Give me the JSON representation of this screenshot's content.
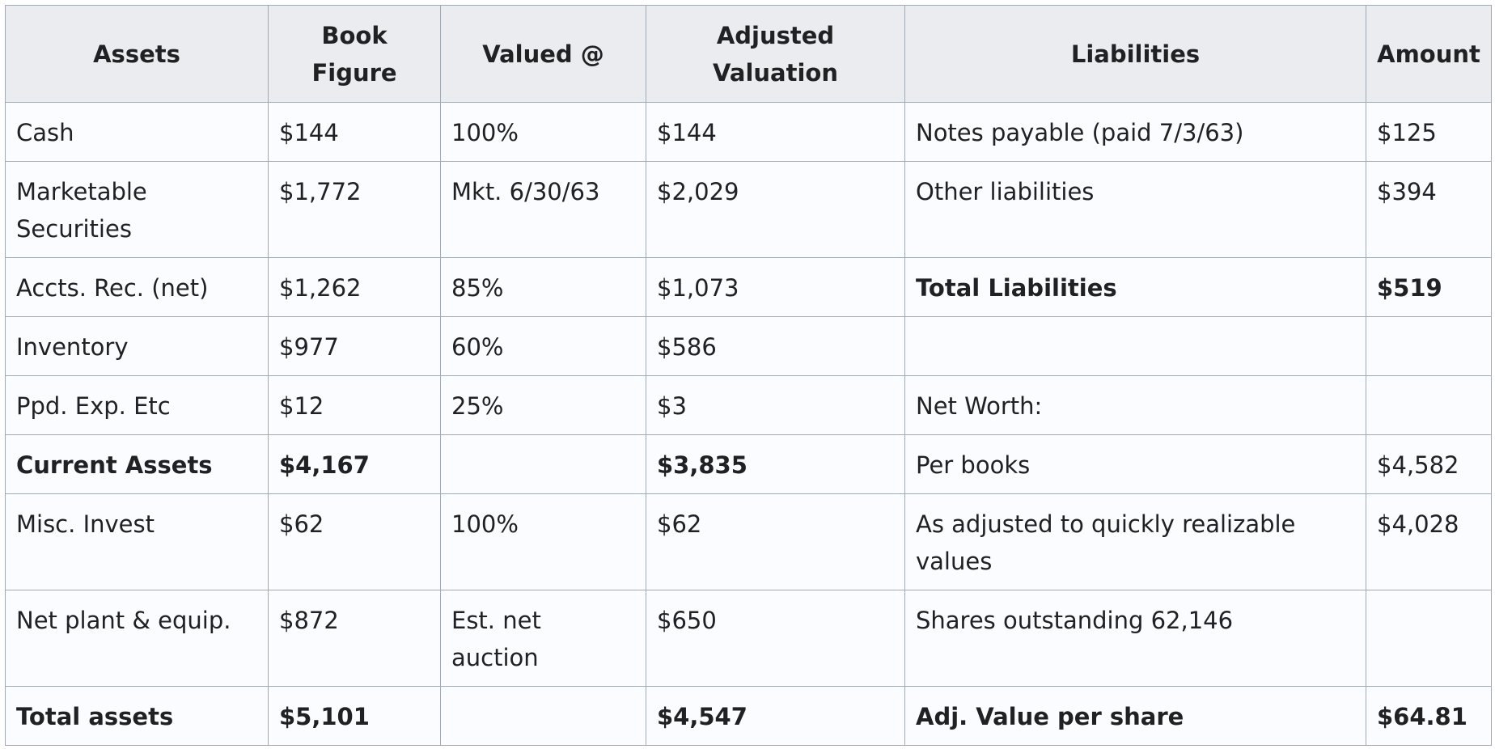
{
  "table": {
    "headers": [
      "Assets",
      "Book Figure",
      "Valued @",
      "Adjusted Valuation",
      "Liabilities",
      "Amount"
    ],
    "rows": [
      {
        "bold": false,
        "liab_bold": false,
        "cells": [
          "Cash",
          "$144",
          "100%",
          "$144",
          "Notes payable (paid 7/3/63)",
          "$125"
        ]
      },
      {
        "bold": false,
        "liab_bold": false,
        "cells": [
          "Marketable Securities",
          "$1,772",
          "Mkt. 6/30/63",
          "$2,029",
          "Other liabilities",
          "$394"
        ]
      },
      {
        "bold": false,
        "liab_bold": true,
        "cells": [
          "Accts. Rec. (net)",
          "$1,262",
          "85%",
          "$1,073",
          "Total Liabilities",
          "$519"
        ]
      },
      {
        "bold": false,
        "liab_bold": false,
        "cells": [
          "Inventory",
          "$977",
          "60%",
          "$586",
          "",
          ""
        ]
      },
      {
        "bold": false,
        "liab_bold": false,
        "cells": [
          "Ppd. Exp. Etc",
          "$12",
          "25%",
          "$3",
          "Net Worth:",
          ""
        ]
      },
      {
        "bold": true,
        "liab_bold": false,
        "cells": [
          "Current Assets",
          "$4,167",
          "",
          "$3,835",
          "Per books",
          "$4,582"
        ]
      },
      {
        "bold": false,
        "liab_bold": false,
        "cells": [
          "Misc. Invest",
          "$62",
          "100%",
          "$62",
          "As adjusted to quickly realizable values",
          "$4,028"
        ]
      },
      {
        "bold": false,
        "liab_bold": false,
        "cells": [
          "Net plant & equip.",
          "$872",
          "Est. net auction",
          "$650",
          "Shares outstanding 62,146",
          ""
        ]
      },
      {
        "bold": true,
        "liab_bold": true,
        "cells": [
          "Total assets",
          "$5,101",
          "",
          "$4,547",
          "Adj. Value per share",
          "$64.81"
        ]
      }
    ]
  }
}
